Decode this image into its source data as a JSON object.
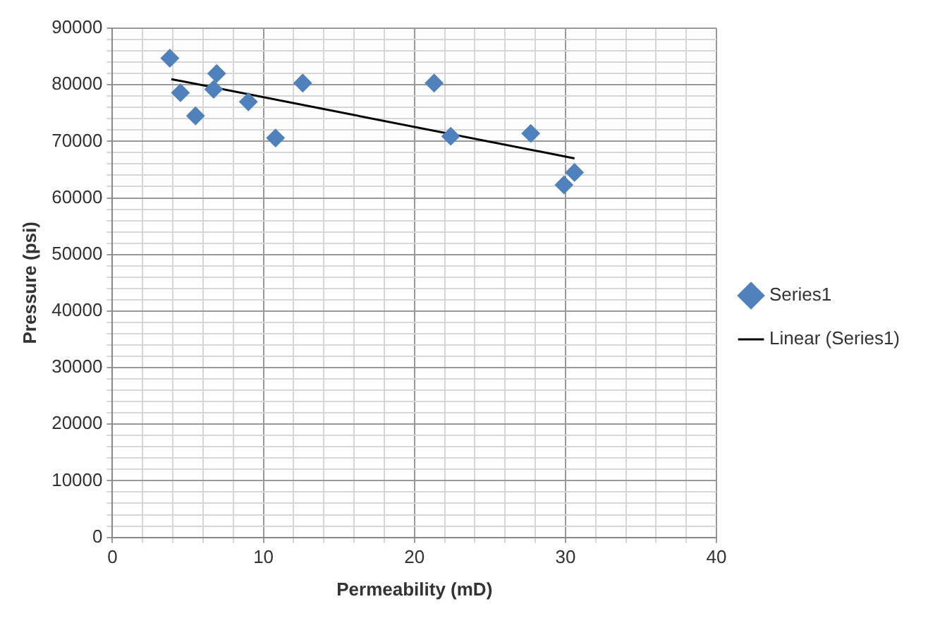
{
  "chart_data": {
    "type": "scatter",
    "xlabel": "Permeability (mD)",
    "ylabel": "Pressure (psi)",
    "xlim": [
      0,
      40
    ],
    "ylim": [
      0,
      90000
    ],
    "xticks": [
      0,
      {
        "value": 2,
        "label": null
      },
      {
        "value": 4,
        "label": null
      },
      {
        "value": 6,
        "label": null
      },
      {
        "value": 8,
        "label": null
      },
      10,
      {
        "value": 12,
        "label": null
      },
      {
        "value": 14,
        "label": null
      },
      {
        "value": 16,
        "label": null
      },
      {
        "value": 18,
        "label": null
      },
      20,
      {
        "value": 22,
        "label": null
      },
      {
        "value": 24,
        "label": null
      },
      {
        "value": 26,
        "label": null
      },
      {
        "value": 28,
        "label": null
      },
      30,
      {
        "value": 32,
        "label": null
      },
      {
        "value": 34,
        "label": null
      },
      {
        "value": 36,
        "label": null
      },
      {
        "value": 38,
        "label": null
      },
      40
    ],
    "yticks": [
      0,
      {
        "value": 2000,
        "label": null
      },
      {
        "value": 4000,
        "label": null
      },
      {
        "value": 6000,
        "label": null
      },
      {
        "value": 8000,
        "label": null
      },
      10000,
      {
        "value": 12000,
        "label": null
      },
      {
        "value": 14000,
        "label": null
      },
      {
        "value": 16000,
        "label": null
      },
      {
        "value": 18000,
        "label": null
      },
      20000,
      {
        "value": 22000,
        "label": null
      },
      {
        "value": 24000,
        "label": null
      },
      {
        "value": 26000,
        "label": null
      },
      {
        "value": 28000,
        "label": null
      },
      30000,
      {
        "value": 32000,
        "label": null
      },
      {
        "value": 34000,
        "label": null
      },
      {
        "value": 36000,
        "label": null
      },
      {
        "value": 38000,
        "label": null
      },
      40000,
      {
        "value": 42000,
        "label": null
      },
      {
        "value": 44000,
        "label": null
      },
      {
        "value": 46000,
        "label": null
      },
      {
        "value": 48000,
        "label": null
      },
      50000,
      {
        "value": 52000,
        "label": null
      },
      {
        "value": 54000,
        "label": null
      },
      {
        "value": 56000,
        "label": null
      },
      {
        "value": 58000,
        "label": null
      },
      60000,
      {
        "value": 62000,
        "label": null
      },
      {
        "value": 64000,
        "label": null
      },
      {
        "value": 66000,
        "label": null
      },
      {
        "value": 68000,
        "label": null
      },
      70000,
      {
        "value": 72000,
        "label": null
      },
      {
        "value": 74000,
        "label": null
      },
      {
        "value": 76000,
        "label": null
      },
      {
        "value": 78000,
        "label": null
      },
      80000,
      {
        "value": 82000,
        "label": null
      },
      {
        "value": 84000,
        "label": null
      },
      {
        "value": 86000,
        "label": null
      },
      {
        "value": 88000,
        "label": null
      },
      90000
    ],
    "grid": true,
    "legend": "right",
    "series": [
      {
        "name": "Series1",
        "color": "#4f81bd",
        "marker": "diamond",
        "x": [
          3.8,
          4.5,
          5.5,
          6.9,
          6.7,
          9.0,
          10.8,
          12.6,
          21.3,
          22.4,
          27.7,
          29.9,
          30.6
        ],
        "values": [
          84700,
          78600,
          74500,
          82000,
          79200,
          77000,
          70600,
          80300,
          80300,
          70900,
          71400,
          62300,
          64500
        ]
      },
      {
        "name": "Linear (Series1)",
        "type": "line",
        "marker": "none",
        "color": "#000000",
        "x": [
          3.9,
          30.6
        ],
        "values": [
          81000,
          67000
        ]
      }
    ]
  }
}
